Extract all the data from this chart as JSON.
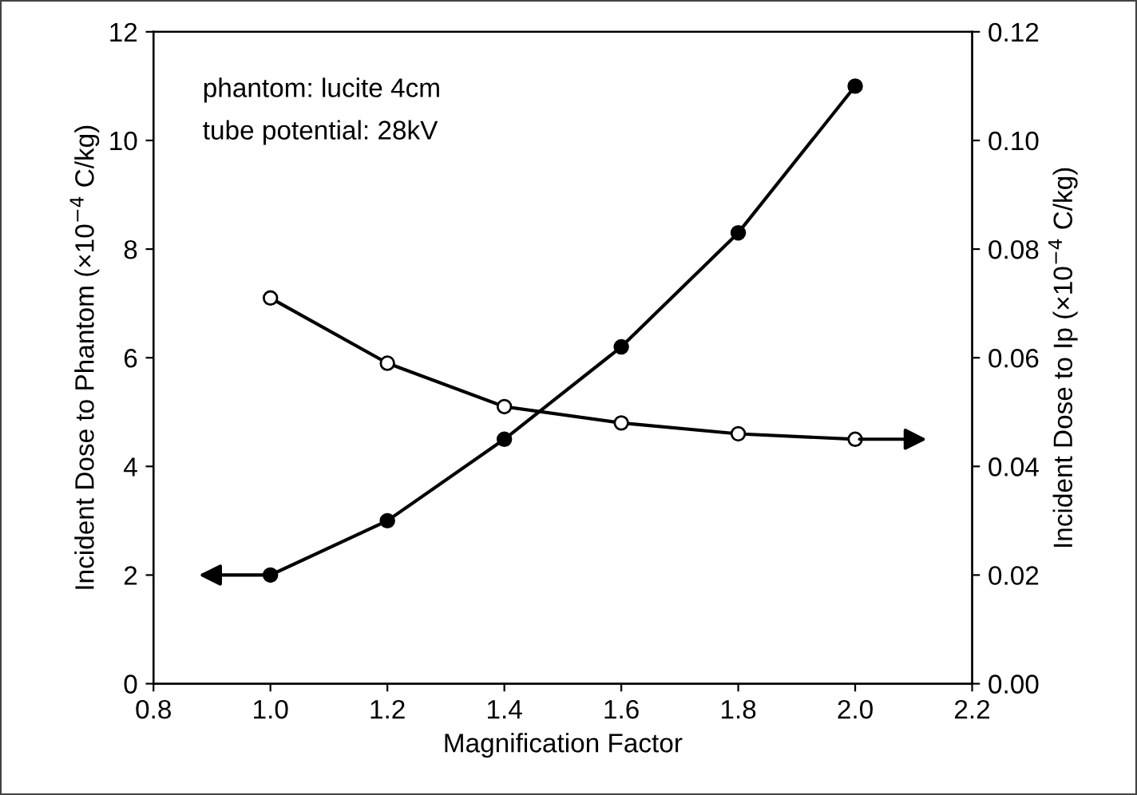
{
  "chart_data": {
    "type": "line",
    "xlabel": "Magnification Factor",
    "ylabel": "Incident Dose to Phantom (×10$^{−4}$ C/kg)",
    "y2label": "Incident Dose to Ip (×10$^{−4}$ C/kg)",
    "x": [
      1.0,
      1.2,
      1.4,
      1.6,
      1.8,
      2.0
    ],
    "series": [
      {
        "color": "#000000",
        "values": [
          2.0,
          3.0,
          4.5,
          6.2,
          8.3,
          11.0
        ]
      },
      {
        "color": "#000000",
        "values": [
          0.071,
          0.059,
          0.051,
          0.048,
          0.046,
          0.045
        ],
        "axis": "y2"
      }
    ],
    "xlim": [
      0.8,
      2.2
    ],
    "xticks": [
      0.8,
      {
        "value": 1,
        "label": "1.0"
      },
      1.2,
      1.4,
      1.6,
      1.8,
      {
        "value": 2,
        "label": "2.0"
      },
      2.2
    ],
    "ylim": [
      0,
      12
    ],
    "yticks": [
      0,
      2,
      4,
      6,
      8,
      10,
      12
    ],
    "y2lim": [
      0,
      0.12
    ],
    "y2ticks": [
      {
        "value": 0,
        "label": "0.00"
      },
      {
        "value": 0.02,
        "label": "0.02"
      },
      {
        "value": 0.04,
        "label": "0.04"
      },
      {
        "value": 0.06,
        "label": "0.06"
      },
      {
        "value": 0.08,
        "label": "0.08"
      },
      {
        "value": 0.1,
        "label": "0.10"
      },
      {
        "value": 0.12,
        "label": "0.12"
      }
    ],
    "annotations": [
      "phantom: lucite 4cm",
      "tube potential: 28kV"
    ],
    "marker": "circle",
    "line_style": "solid",
    "grid": false,
    "legend": false
  }
}
